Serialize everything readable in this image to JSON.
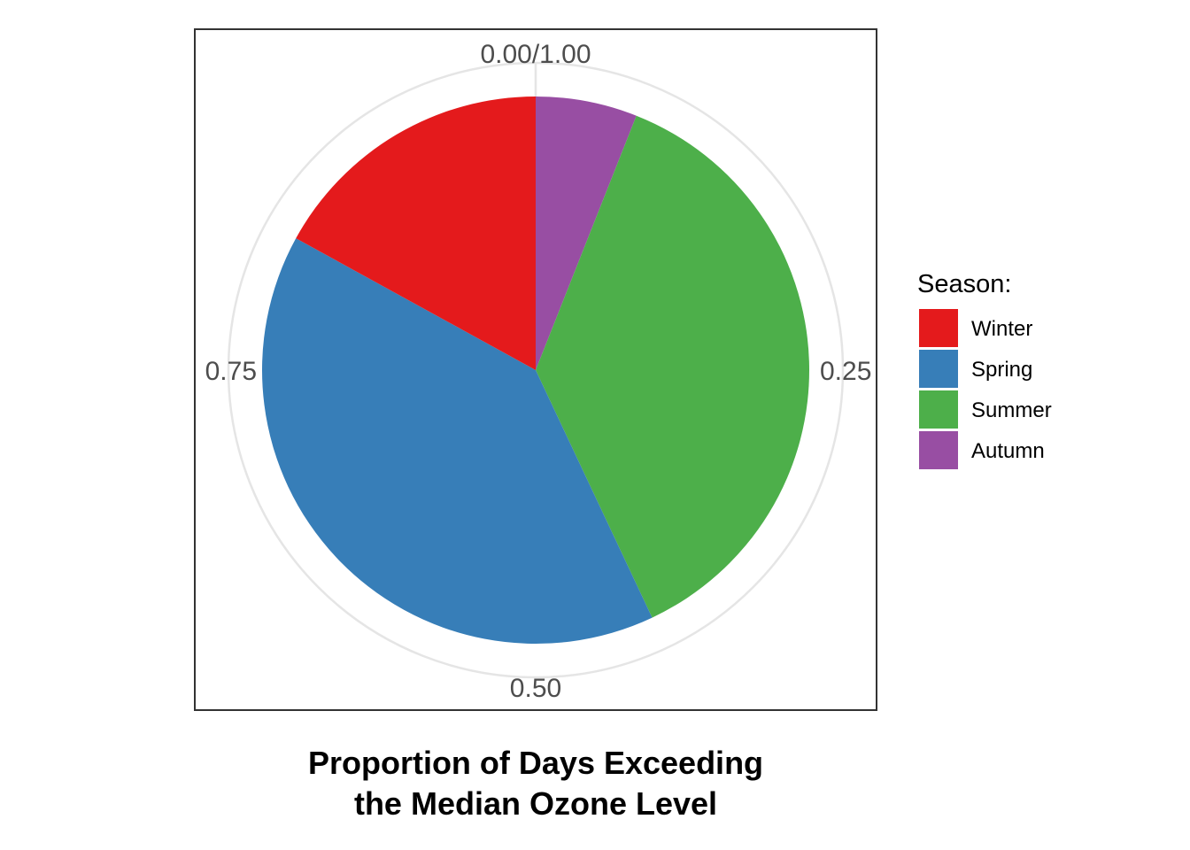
{
  "chart_data": {
    "type": "pie",
    "title_lines": [
      "Proportion of Days Exceeding",
      "the Median Ozone Level"
    ],
    "categories": [
      "Winter",
      "Spring",
      "Summer",
      "Autumn"
    ],
    "values": [
      0.17,
      0.4,
      0.37,
      0.06
    ],
    "colors": [
      "#e41a1c",
      "#377eb8",
      "#4daf4a",
      "#984ea3"
    ],
    "draw_order": [
      "Autumn",
      "Summer",
      "Spring",
      "Winter"
    ],
    "direction": "clockwise",
    "start": "top",
    "tick_labels": [
      {
        "value": 0.0,
        "label": "0.00/1.00"
      },
      {
        "value": 0.25,
        "label": "0.25"
      },
      {
        "value": 0.5,
        "label": "0.50"
      },
      {
        "value": 0.75,
        "label": "0.75"
      }
    ],
    "legend": {
      "title": "Season:",
      "position": "right",
      "entries": [
        "Winter",
        "Spring",
        "Summer",
        "Autumn"
      ]
    },
    "grid": true
  }
}
